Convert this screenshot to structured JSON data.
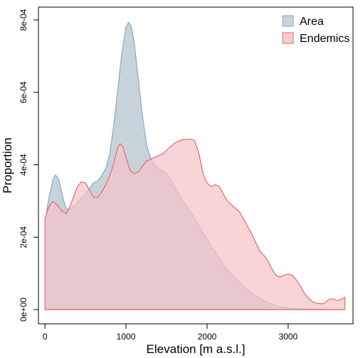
{
  "chart_data": {
    "type": "area",
    "xlabel": "Elevation [m a.s.l.]",
    "ylabel": "Proportion",
    "xlim": [
      -80,
      3800
    ],
    "ylim": [
      0,
      0.0008
    ],
    "x_ticks": [
      0,
      1000,
      2000,
      3000
    ],
    "x_tick_labels": [
      "0",
      "1000",
      "2000",
      "3000"
    ],
    "y_ticks": [
      0,
      0.0002,
      0.0004,
      0.0006,
      0.0008
    ],
    "y_tick_labels": [
      "0e+00",
      "2e-04",
      "4e-04",
      "6e-04",
      "8e-04"
    ],
    "grid": false,
    "legend_position": "top-right",
    "series": [
      {
        "name": "Area",
        "fill": "#c7d3db",
        "stroke": "#8aa9bd",
        "x": [
          0,
          50,
          100,
          130,
          170,
          220,
          260,
          300,
          350,
          400,
          450,
          500,
          550,
          600,
          650,
          700,
          750,
          800,
          850,
          900,
          950,
          1000,
          1030,
          1060,
          1100,
          1150,
          1200,
          1250,
          1300,
          1350,
          1400,
          1450,
          1500,
          1550,
          1600,
          1650,
          1700,
          1800,
          1900,
          2000,
          2100,
          2200,
          2300,
          2400,
          2500,
          2600,
          2700,
          2800,
          2900,
          3000,
          3200,
          3400,
          3600,
          3700
        ],
        "y": [
          0.00024,
          0.00031,
          0.00036,
          0.000372,
          0.00036,
          0.00031,
          0.00028,
          0.000275,
          0.000285,
          0.000295,
          0.00031,
          0.00032,
          0.000335,
          0.00035,
          0.000355,
          0.00037,
          0.00039,
          0.00043,
          0.00051,
          0.00061,
          0.00071,
          0.00078,
          0.000793,
          0.000785,
          0.00074,
          0.00064,
          0.00054,
          0.00046,
          0.00042,
          0.0004,
          0.00039,
          0.000383,
          0.000375,
          0.00036,
          0.00034,
          0.00032,
          0.0003,
          0.00027,
          0.00023,
          0.000195,
          0.00016,
          0.000125,
          9.8e-05,
          7.5e-05,
          5.5e-05,
          3.8e-05,
          2.5e-05,
          1.5e-05,
          8e-06,
          4e-06,
          2e-06,
          1e-06,
          4e-07,
          0.0
        ]
      },
      {
        "name": "Endemics",
        "fill": "#f5c3c7",
        "stroke": "#e06a70",
        "x": [
          0,
          40,
          80,
          100,
          150,
          200,
          260,
          300,
          350,
          400,
          450,
          500,
          550,
          600,
          650,
          700,
          750,
          800,
          850,
          900,
          930,
          960,
          1000,
          1050,
          1100,
          1150,
          1200,
          1250,
          1300,
          1350,
          1400,
          1450,
          1500,
          1550,
          1600,
          1650,
          1700,
          1750,
          1800,
          1850,
          1900,
          1950,
          2000,
          2050,
          2100,
          2150,
          2200,
          2250,
          2300,
          2350,
          2400,
          2450,
          2500,
          2550,
          2600,
          2650,
          2700,
          2750,
          2800,
          2850,
          2900,
          2950,
          3000,
          3050,
          3100,
          3150,
          3200,
          3250,
          3300,
          3350,
          3400,
          3450,
          3500,
          3550,
          3600,
          3650,
          3700
        ],
        "y": [
          0.00025,
          0.00028,
          0.000295,
          0.000298,
          0.00029,
          0.000275,
          0.000265,
          0.00028,
          0.00031,
          0.00034,
          0.000353,
          0.00035,
          0.00033,
          0.00031,
          0.00031,
          0.000325,
          0.000345,
          0.00037,
          0.000405,
          0.00045,
          0.000458,
          0.00045,
          0.00042,
          0.000385,
          0.000375,
          0.00038,
          0.000395,
          0.00041,
          0.000415,
          0.00042,
          0.000425,
          0.00043,
          0.00044,
          0.00045,
          0.00046,
          0.000465,
          0.00047,
          0.00047,
          0.000471,
          0.000465,
          0.00043,
          0.000375,
          0.00035,
          0.00034,
          0.000345,
          0.00034,
          0.00032,
          0.0003,
          0.00029,
          0.00028,
          0.00027,
          0.00025,
          0.00023,
          0.00021,
          0.000185,
          0.000162,
          0.00015,
          0.000135,
          0.000112,
          9.5e-05,
          9e-05,
          9.5e-05,
          9.8e-05,
          9.5e-05,
          8.2e-05,
          6.5e-05,
          4.5e-05,
          3.2e-05,
          2.2e-05,
          1.8e-05,
          1.6e-05,
          1.8e-05,
          2.8e-05,
          3e-05,
          2.5e-05,
          2.8e-05,
          3.4e-05
        ]
      }
    ]
  }
}
